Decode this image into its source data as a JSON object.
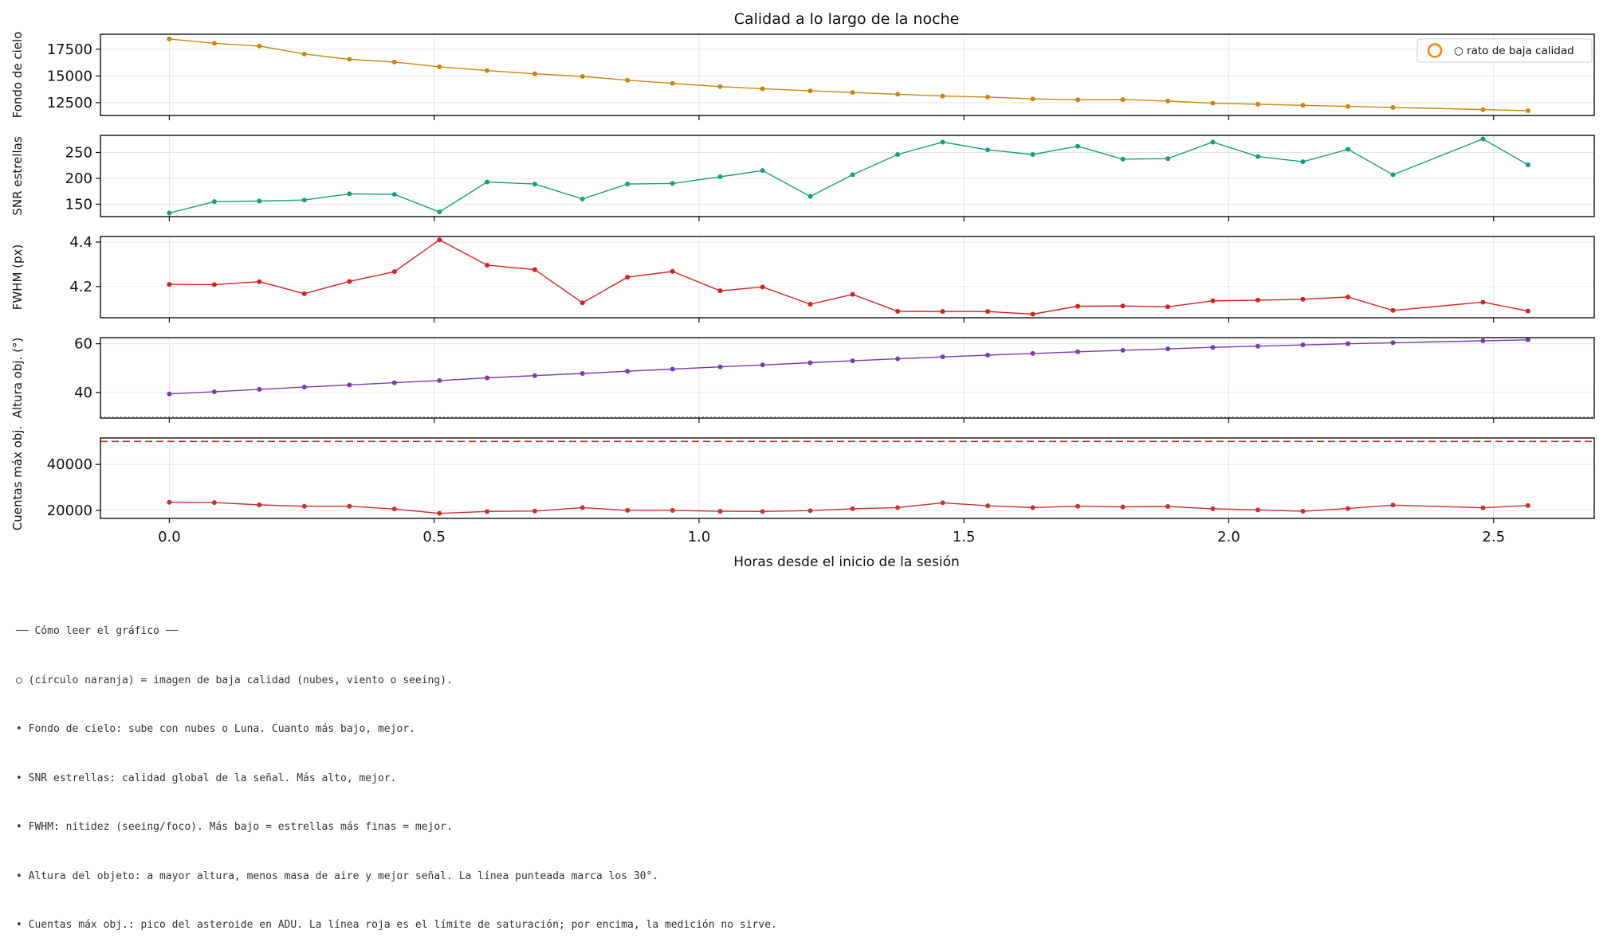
{
  "chart_data": {
    "type": "line",
    "title": "Calidad a lo largo de la noche",
    "xlabel": "Horas desde el inicio de la sesión",
    "xlim": [
      -0.13,
      2.69
    ],
    "xticks": [
      0.0,
      0.5,
      1.0,
      1.5,
      2.0,
      2.5
    ],
    "xtick_labels": [
      "0.0",
      "0.5",
      "1.0",
      "1.5",
      "2.0",
      "2.5"
    ],
    "x": [
      0,
      0.085,
      0.17,
      0.255,
      0.34,
      0.425,
      0.51,
      0.6,
      0.69,
      0.78,
      0.865,
      0.95,
      1.04,
      1.12,
      1.21,
      1.29,
      1.375,
      1.46,
      1.545,
      1.63,
      1.715,
      1.8,
      1.885,
      1.97,
      2.055,
      2.14,
      2.225,
      2.31,
      2.48,
      2.565
    ],
    "grid": true,
    "legend": {
      "entries": [
        "○ rato de baja calidad"
      ],
      "placement": "top-right",
      "marker_color": "#ff7f0e"
    },
    "panels": [
      {
        "name": "sky-background",
        "ylabel": "Fondo de cielo",
        "ylim": [
          11300,
          18900
        ],
        "yticks": [
          12500,
          15000,
          17500
        ],
        "ytick_labels": [
          "12500",
          "15000",
          "17500"
        ],
        "color": "#c8860d",
        "values": [
          18450,
          18050,
          17800,
          17050,
          16550,
          16300,
          15850,
          15500,
          15200,
          14950,
          14600,
          14300,
          14000,
          13800,
          13600,
          13450,
          13280,
          13120,
          13020,
          12850,
          12770,
          12780,
          12650,
          12450,
          12350,
          12250,
          12150,
          12050,
          11850,
          11750
        ]
      },
      {
        "name": "snr",
        "ylabel": "SNR estrellas",
        "ylim": [
          126,
          283
        ],
        "yticks": [
          150,
          200,
          250
        ],
        "ytick_labels": [
          "150",
          "200",
          "250"
        ],
        "color": "#17a077",
        "values": [
          133,
          155,
          156,
          158,
          170,
          169,
          135,
          193,
          189,
          160,
          189,
          190,
          203,
          215,
          165,
          207,
          246,
          270,
          255,
          246,
          262,
          237,
          238,
          270,
          242,
          232,
          256,
          207,
          276,
          226
        ]
      },
      {
        "name": "fwhm",
        "ylabel": "FWHM (px)",
        "ylim": [
          4.06,
          4.425
        ],
        "yticks": [
          4.2,
          4.4
        ],
        "ytick_labels": [
          "4.2",
          "4.4"
        ],
        "color": "#d62020",
        "values": [
          4.21,
          4.209,
          4.222,
          4.168,
          4.223,
          4.267,
          4.41,
          4.296,
          4.276,
          4.127,
          4.242,
          4.268,
          4.181,
          4.198,
          4.121,
          4.165,
          4.089,
          4.088,
          4.088,
          4.076,
          4.112,
          4.113,
          4.109,
          4.136,
          4.139,
          4.143,
          4.153,
          4.093,
          4.13,
          4.09
        ]
      },
      {
        "name": "altitude",
        "ylabel": "Altura obj. (°)",
        "ylim": [
          29.5,
          62.5
        ],
        "yticks": [
          40,
          60
        ],
        "ytick_labels": [
          "40",
          "60"
        ],
        "color": "#7a3cab",
        "reference_line": {
          "value": 30,
          "style": "dotted",
          "color": "#999999"
        },
        "values": [
          39.4,
          40.3,
          41.3,
          42.2,
          43.1,
          44.0,
          44.9,
          46.0,
          46.9,
          47.8,
          48.7,
          49.6,
          50.5,
          51.3,
          52.2,
          53.0,
          53.8,
          54.6,
          55.3,
          56.0,
          56.7,
          57.3,
          57.9,
          58.5,
          59.0,
          59.5,
          60.0,
          60.4,
          61.2,
          61.6
        ]
      },
      {
        "name": "max-counts",
        "ylabel": "Cuentas máx obj.",
        "ylim": [
          16500,
          51500
        ],
        "yticks": [
          20000,
          40000
        ],
        "ytick_labels": [
          "20000",
          "40000"
        ],
        "color": "#c83232",
        "reference_line": {
          "value": 50000,
          "style": "dashed",
          "color": "#d62728"
        },
        "values": [
          23500,
          23400,
          22400,
          21800,
          21800,
          20600,
          18700,
          19500,
          19700,
          21200,
          20000,
          20000,
          19600,
          19500,
          19900,
          20700,
          21200,
          23300,
          22000,
          21200,
          21800,
          21500,
          21700,
          20700,
          20200,
          19600,
          20800,
          22300,
          21100,
          22100
        ]
      }
    ]
  },
  "notes": [
    "── Cómo leer el gráfico ──",
    "○ (círculo naranja) = imagen de baja calidad (nubes, viento o seeing).",
    "• Fondo de cielo: sube con nubes o Luna. Cuanto más bajo, mejor.",
    "• SNR estrellas: calidad global de la señal. Más alto, mejor.",
    "• FWHM: nitidez (seeing/foco). Más bajo = estrellas más finas = mejor.",
    "• Altura del objeto: a mayor altura, menos masa de aire y mejor señal. La línea punteada marca los 30°.",
    "• Cuentas máx obj.: pico del asteroide en ADU. La línea roja es el límite de saturación; por encima, la medición no sirve."
  ]
}
